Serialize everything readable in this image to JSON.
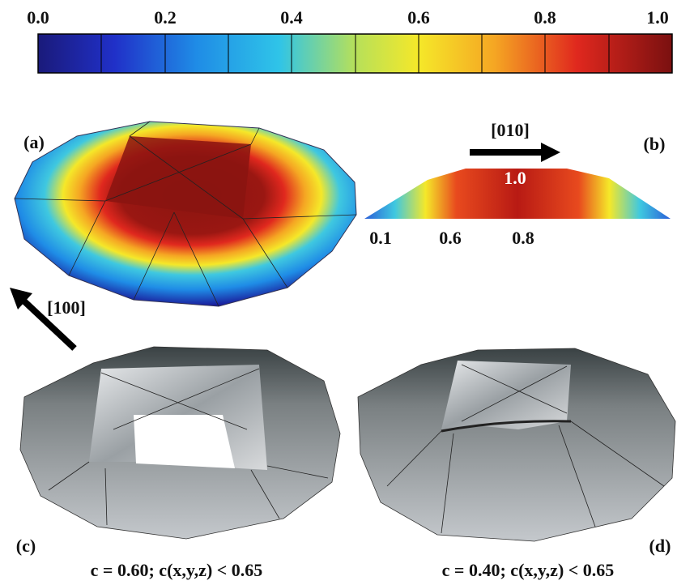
{
  "colorbar": {
    "ticks": [
      "0.0",
      "0.2",
      "0.4",
      "0.6",
      "0.8",
      "1.0"
    ]
  },
  "panel_a": {
    "label": "(a)"
  },
  "panel_b": {
    "label": "(b)",
    "direction": "[010]",
    "peak_label": "1.0",
    "scale_labels": [
      "0.1",
      "0.6",
      "0.8"
    ]
  },
  "direction_100": "[100]",
  "panel_c": {
    "label": "(c)",
    "caption": "c = 0.60; c(x,y,z) < 0.65"
  },
  "panel_d": {
    "label": "(d)",
    "caption": "c = 0.40; c(x,y,z) < 0.65"
  }
}
